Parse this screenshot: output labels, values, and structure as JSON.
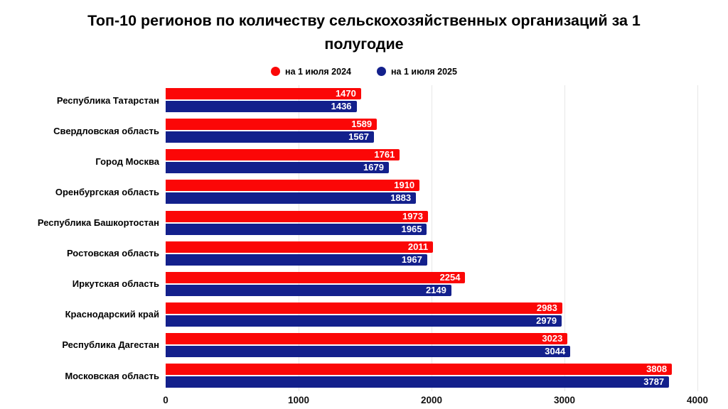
{
  "title": "Топ-10 регионов по количеству сельскохозяйственных организаций за 1 полугодие",
  "colors": {
    "series_2024": "#fb0707",
    "series_2025": "#13208c",
    "gridline": "#e7e7e7",
    "value_text": "#ffffff",
    "label_text": "#000000"
  },
  "chart_data": {
    "type": "bar",
    "orientation": "horizontal",
    "title": "Топ-10 регионов по количеству сельскохозяйственных организаций за 1 полугодие",
    "xlabel": "",
    "ylabel": "",
    "xlim": [
      0,
      4000
    ],
    "xticks": [
      0,
      1000,
      2000,
      3000,
      4000
    ],
    "grid": "vertical",
    "legend_position": "top",
    "categories": [
      "Республика Татарстан",
      "Свердловская область",
      "Город Москва",
      "Оренбургская область",
      "Республика Башкортостан",
      "Ростовская область",
      "Иркутская область",
      "Краснодарский край",
      "Республика Дагестан",
      "Московская область"
    ],
    "series": [
      {
        "name": "на 1 июля 2024",
        "color": "#fb0707",
        "values": [
          1470,
          1589,
          1761,
          1910,
          1973,
          2011,
          2254,
          2983,
          3023,
          3808
        ]
      },
      {
        "name": "на 1 июля 2025",
        "color": "#13208c",
        "values": [
          1436,
          1567,
          1679,
          1883,
          1965,
          1967,
          2149,
          2979,
          3044,
          3787
        ]
      }
    ]
  }
}
